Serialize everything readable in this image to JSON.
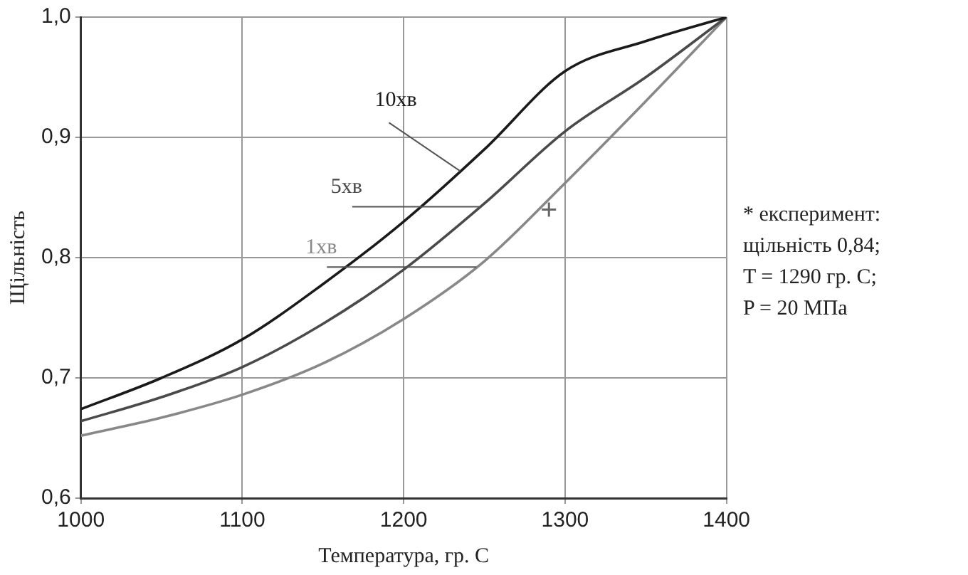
{
  "chart_data": {
    "type": "line",
    "xlabel": "Температура, гр. С",
    "ylabel": "Щільність",
    "x": [
      1000,
      1050,
      1100,
      1150,
      1200,
      1250,
      1300,
      1350,
      1400
    ],
    "series": [
      {
        "name": "10хв",
        "color": "#1a1a1a",
        "values": [
          0.674,
          0.7,
          0.732,
          0.778,
          0.83,
          0.89,
          0.955,
          0.98,
          1.0
        ]
      },
      {
        "name": "5хв",
        "color": "#4a4a4a",
        "values": [
          0.664,
          0.684,
          0.709,
          0.745,
          0.79,
          0.845,
          0.905,
          0.95,
          1.0
        ]
      },
      {
        "name": "1хв",
        "color": "#888888",
        "values": [
          0.652,
          0.667,
          0.686,
          0.712,
          0.749,
          0.797,
          0.862,
          0.93,
          1.0
        ]
      },
      {
        "type": "scatter",
        "x": [
          1290
        ],
        "values": [
          0.84
        ],
        "color": "#666666",
        "marker": "cross"
      }
    ],
    "xlim": [
      1000,
      1400
    ],
    "xticks": [
      1000,
      1100,
      1200,
      1300,
      1400
    ],
    "ylim": [
      0.6,
      1.0
    ],
    "yticks": [
      {
        "value": 0.6,
        "label": "0,6"
      },
      {
        "value": 0.7,
        "label": "0,7"
      },
      {
        "value": 0.8,
        "label": "0,8"
      },
      {
        "value": 0.9,
        "label": "0,9"
      },
      {
        "value": 1.0,
        "label": "1,0"
      }
    ],
    "grid": true,
    "legend": false,
    "line_style": "solid",
    "marker": "none",
    "annotations": [
      "* експеримент:",
      "щільність 0,84;",
      "T = 1290 гр. С;",
      "P = 20 МПа"
    ]
  }
}
